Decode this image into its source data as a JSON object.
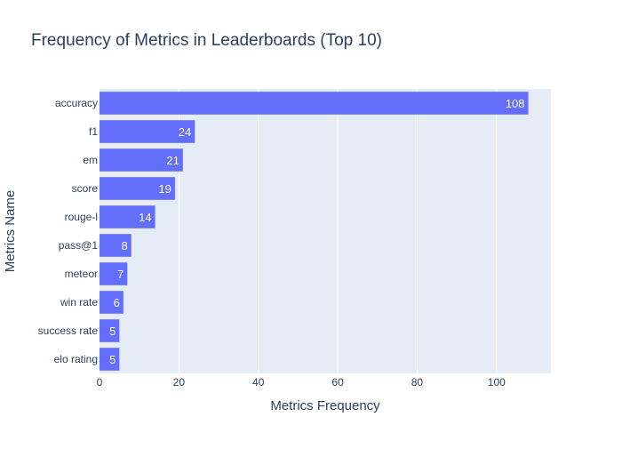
{
  "chart_data": {
    "type": "bar",
    "orientation": "horizontal",
    "title": "Frequency of Metrics in Leaderboards (Top 10)",
    "xlabel": "Metrics Frequency",
    "ylabel": "Metrics Name",
    "categories": [
      "accuracy",
      "f1",
      "em",
      "score",
      "rouge-l",
      "pass@1",
      "meteor",
      "win rate",
      "success rate",
      "elo rating"
    ],
    "values": [
      108,
      24,
      21,
      19,
      14,
      8,
      7,
      6,
      5,
      5
    ],
    "xlim": [
      0,
      113.7
    ],
    "xticks": [
      0,
      20,
      40,
      60,
      80,
      100
    ],
    "grid": true,
    "legend": "none",
    "colors": {
      "bar": "#636efa",
      "plot_bg": "#e5ecf6",
      "grid": "#ffffff",
      "text": "#2a3f5f",
      "bar_label": "#ffffff"
    }
  }
}
